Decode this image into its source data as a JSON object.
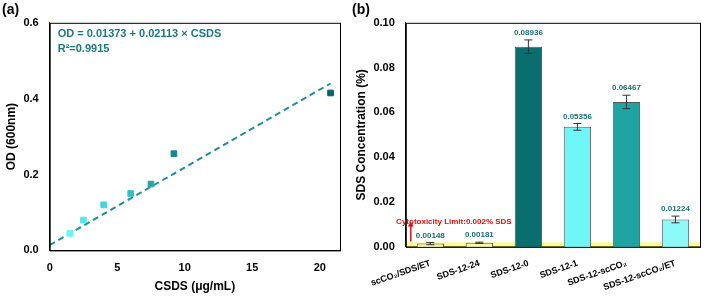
{
  "chart_data": [
    {
      "type": "scatter",
      "title": "(a)",
      "x_label": "CSDS (μg/mL)",
      "y_label": "OD (600nm)",
      "annotations": [
        "OD = 0.01373 + 0.02113 × CSDS",
        "R²=0.9915"
      ],
      "series": [
        {
          "type": "scatter",
          "marker": "square",
          "x": [
            1.5,
            2.5,
            4,
            6,
            7.5,
            9.2,
            20.8
          ],
          "values": [
            0.045,
            0.08,
            0.12,
            0.15,
            0.175,
            0.255,
            0.415
          ],
          "colors": [
            "#66f4f4",
            "#55e6e6",
            "#44d6d6",
            "#33c2c2",
            "#22a6a6",
            "#138a8a",
            "#066464"
          ]
        },
        {
          "type": "line",
          "line_style": "dashed",
          "color": "#1f8f8f",
          "x": [
            0,
            20.8
          ],
          "values": [
            0.014,
            0.44
          ]
        }
      ],
      "xlim": [
        0,
        21.5
      ],
      "xticks": [
        0,
        5,
        10,
        15,
        20
      ],
      "ylim": [
        0,
        0.6
      ],
      "yticks": [
        {
          "value": 0,
          "label": "0.0"
        },
        {
          "value": 0.2,
          "label": "0.2"
        },
        {
          "value": 0.4,
          "label": "0.4"
        },
        {
          "value": 0.6,
          "label": "0.6"
        }
      ],
      "grid": false
    },
    {
      "type": "bar",
      "title": "(b)",
      "y_label": "SDS Concentration (%)",
      "categories": [
        "scCO₂/SDS/ET",
        "SDS-12-24",
        "SDS-12-0",
        "SDS-12-1",
        "SDS-12-scCO₂",
        "SDS-12-scCO₂/ET"
      ],
      "values": [
        0.00148,
        0.00181,
        0.08936,
        0.05356,
        0.06467,
        0.01224
      ],
      "errors": [
        0.0005,
        0.0003,
        0.003,
        0.0015,
        0.003,
        0.0015
      ],
      "colors": [
        "#fbf7a8",
        "#fbf7a8",
        "#0b6e6e",
        "#6ff7f7",
        "#1fa3a3",
        "#8dfafa"
      ],
      "data_labels": true,
      "annotations": [
        {
          "text": "Cytotoxicity Limit:0.002% SDS",
          "value": 0.002
        }
      ],
      "ylim": [
        0,
        0.1
      ],
      "yticks": [
        {
          "value": 0,
          "label": "0.00"
        },
        {
          "value": 0.02,
          "label": "0.02"
        },
        {
          "value": 0.04,
          "label": "0.04"
        },
        {
          "value": 0.06,
          "label": "0.06"
        },
        {
          "value": 0.08,
          "label": "0.08"
        },
        {
          "value": 0.1,
          "label": "0.10"
        }
      ],
      "grid": false
    }
  ]
}
